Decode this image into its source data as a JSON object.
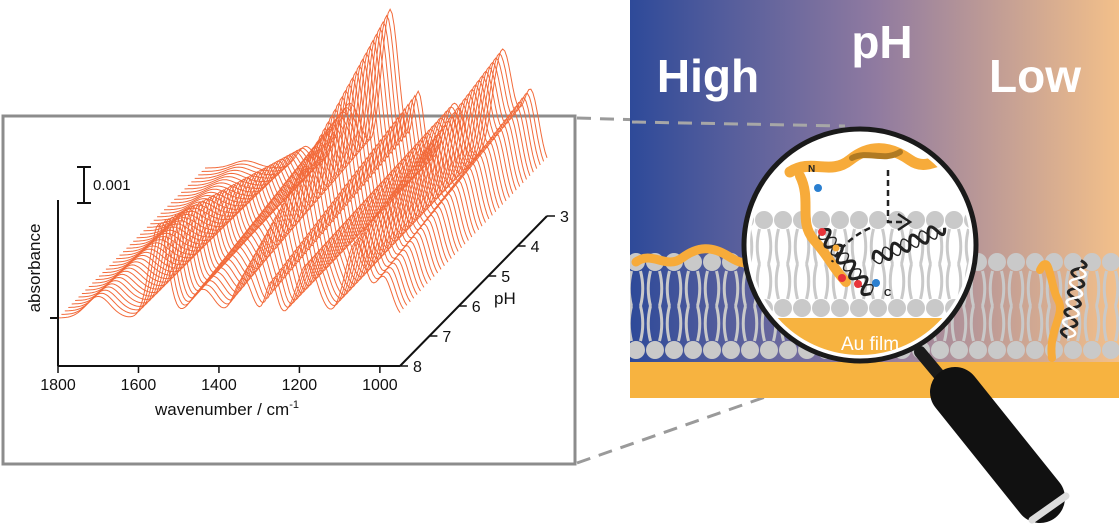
{
  "scene": {
    "ph_labels": {
      "high": "High",
      "title": "pH",
      "low": "Low"
    },
    "film_label": "Au film",
    "gradient_colors": {
      "high": "#2e4a99",
      "mid": "#8f7aa0",
      "low": "#f3c08a"
    },
    "accent_colors": {
      "spectra": "#f26a3a",
      "peptide": "#f7ab3a",
      "gold": "#f7b340",
      "lipid": "#c9c9c9"
    },
    "terminus_labels": {
      "n": "N",
      "c": "C"
    }
  },
  "chart_data": {
    "type": "line",
    "subtype": "waterfall-3d",
    "xlabel": "wavenumber / cm",
    "xlabel_superscript": "-1",
    "ylabel": "absorbance",
    "zlabel": "pH",
    "xlim": [
      1800,
      950
    ],
    "x_ticks": [
      1800,
      1600,
      1400,
      1200,
      1000
    ],
    "z_ticks": [
      3,
      4,
      5,
      6,
      7,
      8
    ],
    "scale_bar_label": "0.001",
    "scale_bar_value": 0.001,
    "peaks": [
      {
        "center": 1700,
        "width": 30,
        "amp": [
          0.0002,
          0.0006
        ]
      },
      {
        "center": 1550,
        "width": 22,
        "amp": [
          0.0006,
          0.0026
        ]
      },
      {
        "center": 1440,
        "width": 30,
        "amp": [
          0.0018,
          0.0008
        ]
      },
      {
        "center": 1340,
        "width": 22,
        "amp": [
          0.0044,
          0.0011
        ]
      },
      {
        "center": 1270,
        "width": 14,
        "amp": [
          0.0021,
          0.001
        ]
      },
      {
        "center": 1180,
        "width": 26,
        "amp": [
          0.0018,
          0.0015
        ]
      },
      {
        "center": 1060,
        "width": 26,
        "amp": [
          0.0033,
          0.0021
        ]
      },
      {
        "center": 990,
        "width": 20,
        "amp": [
          0.0021,
          0.0011
        ]
      }
    ]
  }
}
